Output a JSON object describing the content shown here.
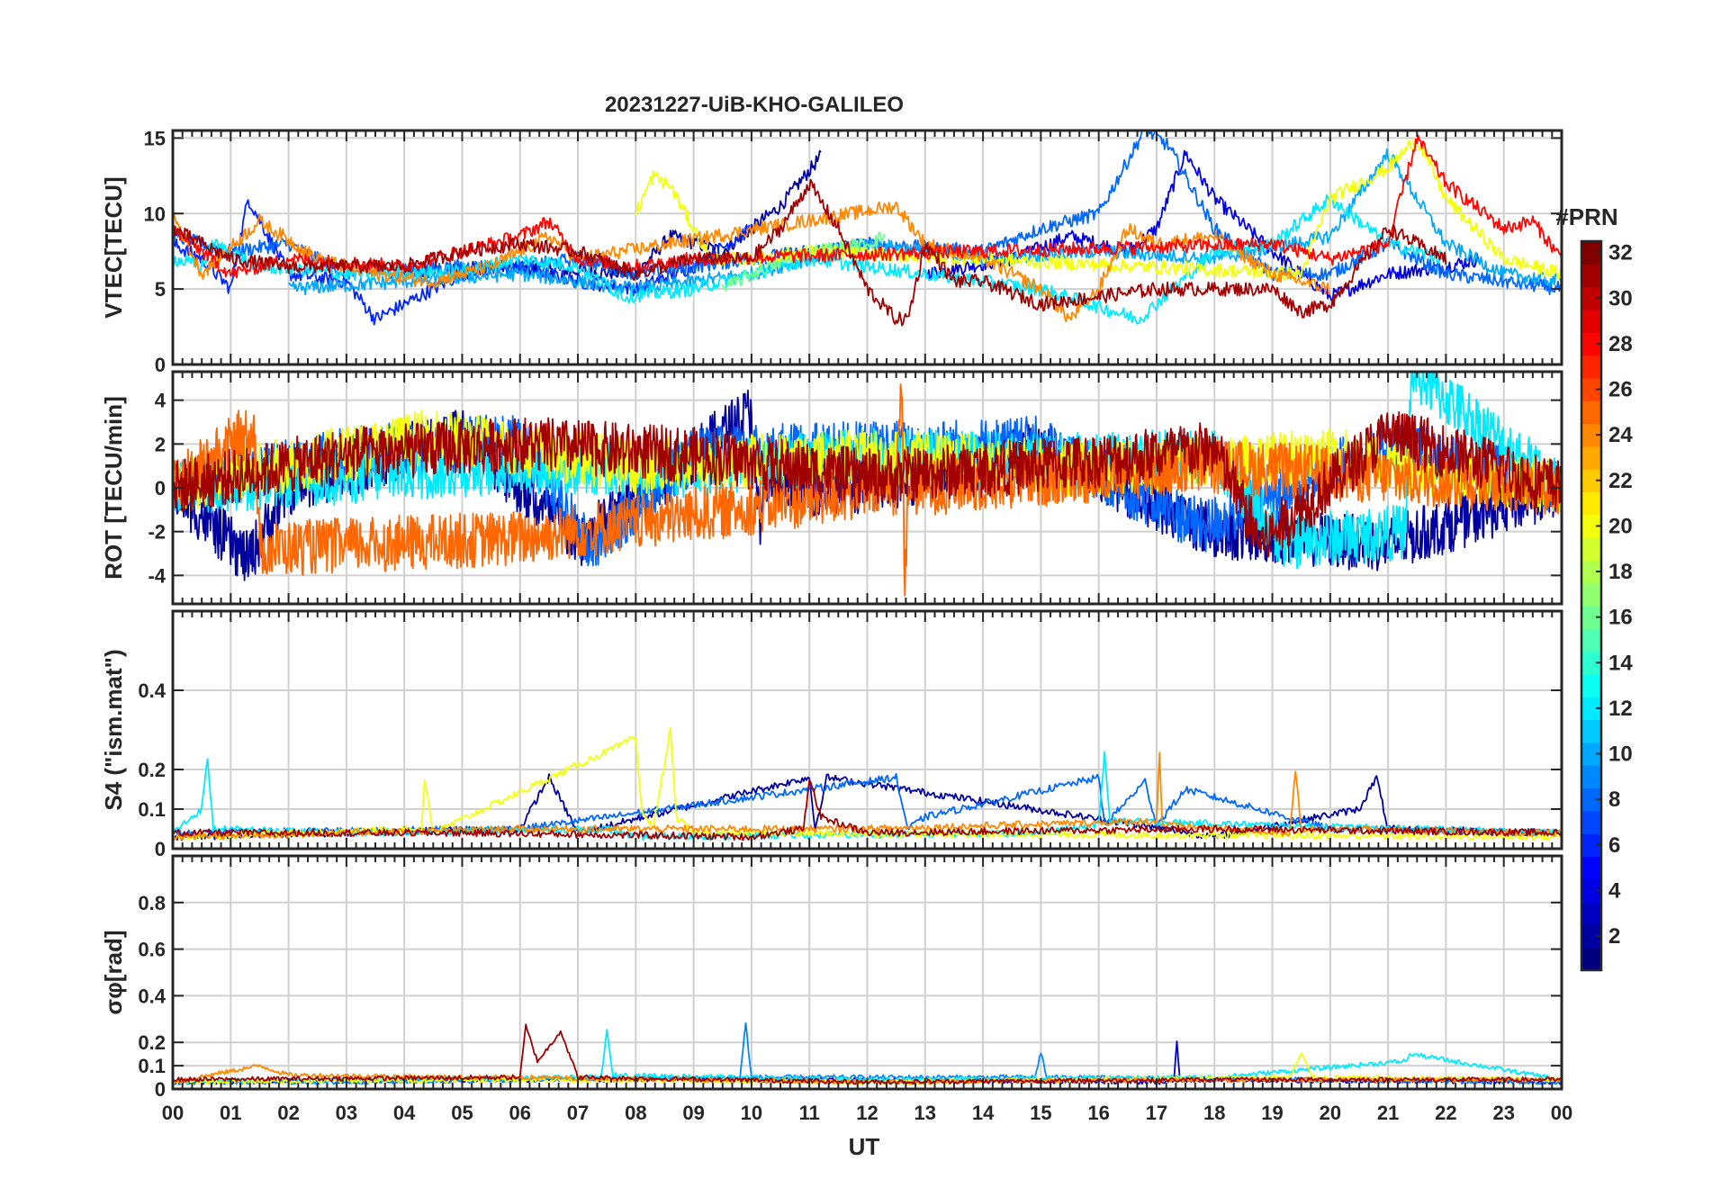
{
  "chart_data": {
    "type": "line",
    "title": "20231227-UiB-KHO-GALILEO",
    "xlabel": "UT",
    "x_tick_labels": [
      "00",
      "01",
      "02",
      "03",
      "04",
      "05",
      "06",
      "07",
      "08",
      "09",
      "10",
      "11",
      "12",
      "13",
      "14",
      "15",
      "16",
      "17",
      "18",
      "19",
      "20",
      "21",
      "22",
      "23",
      "00"
    ],
    "x_range_hours": [
      0,
      24
    ],
    "colorbar": {
      "title": "#PRN",
      "range": [
        1,
        32
      ],
      "tick_labels": [
        "2",
        "4",
        "6",
        "8",
        "10",
        "12",
        "14",
        "16",
        "18",
        "20",
        "22",
        "24",
        "26",
        "28",
        "30",
        "32"
      ],
      "colormap": "jet"
    },
    "panels": [
      {
        "name": "vtec",
        "ylabel": "VTEC[TECU]",
        "ylim": [
          0,
          15.5
        ],
        "y_ticks": [
          0,
          5,
          10,
          15
        ],
        "y_tick_labels": [
          "0",
          "5",
          "10",
          "15"
        ],
        "series": [
          {
            "prn": 2,
            "x": [
              4.0,
              5.5,
              7.0,
              8.0,
              8.6,
              9.5,
              10.5,
              11.2
            ],
            "y": [
              6,
              6.5,
              6.2,
              6,
              8.5,
              7.5,
              10.5,
              13.8
            ]
          },
          {
            "prn": 4,
            "x": [
              13.0,
              14.5,
              15.5,
              16.5,
              17.0,
              17.5,
              18.0,
              19.0,
              20.0,
              21.0,
              22.0,
              22.6
            ],
            "y": [
              6,
              7,
              8.5,
              7.5,
              9,
              14,
              11,
              7.5,
              4.5,
              6,
              6.5,
              7
            ]
          },
          {
            "prn": 6,
            "x": [
              0.0,
              0.5,
              1.0,
              1.3,
              2.0,
              3.0,
              3.5,
              5.0,
              6.0,
              7.0,
              8.0,
              9.0,
              10.0
            ],
            "y": [
              8,
              7,
              5,
              11,
              6,
              5.5,
              3,
              6,
              6.5,
              5.5,
              5,
              6.5,
              9
            ]
          },
          {
            "prn": 8,
            "x": [
              0.0,
              1.0,
              2.0,
              3.0,
              5.0,
              6.0,
              7.0,
              8.0,
              10.0,
              12.0,
              14.0,
              15.0,
              16.0,
              16.8,
              17.2,
              18.0,
              19.0,
              20.0,
              21.0,
              22.0,
              23.0,
              24.0
            ],
            "y": [
              8.5,
              7.5,
              8,
              6,
              6.5,
              6.5,
              7,
              6,
              7,
              8,
              7.5,
              9,
              10,
              15.6,
              14.5,
              9,
              6,
              6,
              8,
              6,
              5.5,
              5
            ]
          },
          {
            "prn": 10,
            "x": [
              2.0,
              4.0,
              6.0,
              8.0,
              10.0,
              12.0,
              14.0,
              16.0,
              18.0,
              20.0,
              21.0,
              21.5,
              22.0,
              23.0,
              24.0
            ],
            "y": [
              5,
              5.5,
              6,
              5,
              6,
              8,
              7,
              7.5,
              7,
              8.5,
              14,
              11,
              8,
              6,
              5.5
            ]
          },
          {
            "prn": 12,
            "x": [
              0.0,
              0.5,
              0.7,
              1.5,
              3.0,
              5.0,
              6.0,
              7.0,
              7.8,
              9.0,
              11.0,
              13.0,
              15.0,
              16.7,
              18.0,
              19.0,
              20.0,
              21.0,
              22.0
            ],
            "y": [
              7,
              6.5,
              8,
              6.5,
              6,
              6.2,
              7,
              6.5,
              4.5,
              5,
              7,
              6,
              5,
              3,
              7.5,
              8,
              11,
              8,
              7
            ]
          },
          {
            "prn": 16,
            "x": [
              9.5,
              10.0,
              11.0,
              12.0,
              12.3
            ],
            "y": [
              5,
              6,
              7.5,
              8,
              8.5
            ]
          },
          {
            "prn": 20,
            "x": [
              8.0,
              8.3,
              8.6,
              9.0,
              9.3,
              10.0,
              11.0,
              19.5,
              20.0,
              21.0,
              21.5,
              22.0,
              23.0,
              24.0
            ],
            "y": [
              10,
              12.5,
              11.8,
              9,
              7,
              7,
              7.5,
              6,
              11,
              13,
              15,
              11,
              7,
              6
            ]
          },
          {
            "prn": 24,
            "x": [
              0.0,
              0.5,
              1.5,
              2.5,
              3.5,
              4.5,
              5.5,
              6.5,
              7.0,
              12.5,
              13.0,
              14.0,
              15.0,
              15.5,
              16.0,
              16.5,
              17.0,
              18.0,
              19.0,
              20.0
            ],
            "y": [
              10,
              6,
              9.5,
              7,
              6,
              5.5,
              6.5,
              8.5,
              7,
              10.5,
              8,
              7,
              5,
              3,
              5,
              9,
              8,
              8.5,
              6,
              5
            ]
          },
          {
            "prn": 28,
            "x": [
              0.0,
              1.0,
              2.0,
              4.0,
              5.0,
              6.0,
              6.5,
              7.0,
              8.0,
              9.0,
              19.0,
              20.0,
              21.0,
              21.5,
              22.0,
              23.0,
              23.5,
              24.0
            ],
            "y": [
              9,
              6,
              7,
              6.5,
              7.5,
              8.5,
              9.5,
              7,
              6.5,
              7,
              8,
              7,
              8,
              15,
              12,
              9,
              9.5,
              7
            ]
          },
          {
            "prn": 31,
            "x": [
              0.0,
              1.0,
              2.0,
              4.0,
              5.0,
              6.0,
              7.0,
              8.0,
              9.0,
              10.0,
              10.5,
              11.0,
              11.5,
              12.0,
              12.5,
              12.7,
              13.0,
              13.5,
              14.0,
              15.0,
              16.0,
              17.0,
              18.0,
              19.0,
              19.5,
              20.0,
              21.0,
              22.0
            ],
            "y": [
              9,
              7,
              6.5,
              6.5,
              7.5,
              8,
              7.5,
              6,
              7,
              7,
              9,
              12,
              9,
              5,
              3,
              3,
              8,
              5.5,
              5.5,
              4,
              4.5,
              5,
              5,
              5,
              3.5,
              4,
              9,
              7
            ]
          }
        ]
      },
      {
        "name": "rot",
        "ylabel": "ROT [TECU/min]",
        "ylim": [
          -5.3,
          5.3
        ],
        "y_ticks": [
          -4,
          -2,
          0,
          2,
          4
        ],
        "y_tick_labels": [
          "-4",
          "-2",
          "0",
          "2",
          "4"
        ],
        "series": [
          {
            "prn": 2,
            "x": [
              0.0,
              1.3,
              2.0,
              5.0,
              7.0,
              10.0,
              10.15,
              10.2,
              12.0,
              15.0,
              18.0,
              21.0,
              24.0
            ],
            "y": [
              0,
              -3.3,
              0,
              2.5,
              -2.5,
              3.5,
              -2.5,
              0,
              0,
              1.8,
              -2,
              -2.6,
              0
            ]
          },
          {
            "prn": 8,
            "x": [
              0.0,
              3.0,
              6.0,
              7.2,
              9.0,
              12.0,
              15.0,
              17.8,
              21.0,
              24.0
            ],
            "y": [
              0,
              1.5,
              2.2,
              -2.8,
              1.5,
              1.8,
              2,
              -1.8,
              2,
              0
            ]
          },
          {
            "prn": 12,
            "x": [
              0.0,
              3.0,
              6.0,
              9.0,
              12.0,
              15.0,
              18.0,
              19.2,
              21.3,
              21.4,
              24.0
            ],
            "y": [
              0,
              0.5,
              1,
              0.8,
              1.5,
              1.2,
              1.5,
              -2.5,
              -2,
              5.3,
              0
            ]
          },
          {
            "prn": 20,
            "x": [
              0.0,
              4.5,
              8.0,
              12.0,
              16.0,
              20.0,
              24.0
            ],
            "y": [
              0,
              2.4,
              1,
              1.5,
              0.8,
              1.5,
              0
            ]
          },
          {
            "prn": 25,
            "x": [
              0.0,
              1.4,
              1.5,
              6.0,
              12.5,
              12.6,
              12.65,
              12.7,
              13.0,
              18.0,
              24.0
            ],
            "y": [
              0,
              2.8,
              -2.8,
              -2.3,
              0,
              5.2,
              -5.3,
              0,
              0,
              1,
              0
            ]
          },
          {
            "prn": 31,
            "x": [
              0.0,
              3.0,
              6.0,
              9.0,
              12.0,
              15.0,
              18.0,
              18.8,
              21.0,
              24.0
            ],
            "y": [
              0,
              1.5,
              2,
              1.5,
              0.5,
              1,
              1.8,
              -2.5,
              2.5,
              0
            ]
          }
        ]
      },
      {
        "name": "s4",
        "ylabel": "S4 (\"ism.mat\")",
        "ylim": [
          0,
          0.6
        ],
        "y_ticks": [
          0,
          0.1,
          0.2,
          0.4
        ],
        "y_tick_labels": [
          "0",
          "0.1",
          "0.2",
          "0.4"
        ],
        "series": [
          {
            "prn": 2,
            "x": [
              0.0,
              6.0,
              6.5,
              7.0,
              11.0,
              11.1,
              11.3,
              18.0,
              20.5,
              20.8,
              21.0,
              24.0
            ],
            "y": [
              0.03,
              0.05,
              0.18,
              0.04,
              0.18,
              0.05,
              0.18,
              0.03,
              0.1,
              0.18,
              0.05,
              0.04
            ]
          },
          {
            "prn": 8,
            "x": [
              0.0,
              6.0,
              12.5,
              12.7,
              13.0,
              16.0,
              16.1,
              16.8,
              17.0,
              17.5,
              20.0,
              24.0
            ],
            "y": [
              0.04,
              0.05,
              0.18,
              0.05,
              0.08,
              0.18,
              0.06,
              0.17,
              0.06,
              0.15,
              0.05,
              0.04
            ]
          },
          {
            "prn": 12,
            "x": [
              0.0,
              0.5,
              0.6,
              0.7,
              3.0,
              7.5,
              8.0,
              15.0,
              16.0,
              16.1,
              16.2,
              24.0
            ],
            "y": [
              0.04,
              0.1,
              0.23,
              0.05,
              0.04,
              0.05,
              0.03,
              0.04,
              0.06,
              0.24,
              0.07,
              0.04
            ]
          },
          {
            "prn": 20,
            "x": [
              0.0,
              4.3,
              4.35,
              4.5,
              8.0,
              8.1,
              8.3,
              8.6,
              8.7,
              9.0,
              24.0
            ],
            "y": [
              0.03,
              0.05,
              0.18,
              0.04,
              0.28,
              0.1,
              0.05,
              0.3,
              0.08,
              0.04,
              0.03
            ]
          },
          {
            "prn": 24,
            "x": [
              0.0,
              6.0,
              12.0,
              17.0,
              17.05,
              17.1,
              19.3,
              19.4,
              19.5,
              24.0
            ],
            "y": [
              0.03,
              0.05,
              0.05,
              0.07,
              0.24,
              0.06,
              0.04,
              0.2,
              0.05,
              0.04
            ]
          },
          {
            "prn": 31,
            "x": [
              0.0,
              5.0,
              10.0,
              10.9,
              11.0,
              11.2,
              12.0,
              18.0,
              24.0
            ],
            "y": [
              0.04,
              0.04,
              0.03,
              0.05,
              0.18,
              0.08,
              0.04,
              0.05,
              0.04
            ]
          }
        ]
      },
      {
        "name": "sigma_phi",
        "ylabel": "σφ[rad]",
        "ylim": [
          0,
          1.0
        ],
        "y_ticks": [
          0,
          0.1,
          0.2,
          0.4,
          0.6,
          0.8
        ],
        "y_tick_labels": [
          "0",
          "0.1",
          "0.2",
          "0.4",
          "0.6",
          "0.8"
        ],
        "series": [
          {
            "prn": 3,
            "x": [
              0.0,
              6.0,
              12.0,
              17.3,
              17.35,
              17.4,
              24.0
            ],
            "y": [
              0.03,
              0.04,
              0.04,
              0.03,
              0.21,
              0.04,
              0.03
            ]
          },
          {
            "prn": 9,
            "x": [
              0.0,
              3.0,
              9.8,
              9.9,
              10.0,
              14.9,
              15.0,
              15.1,
              24.0
            ],
            "y": [
              0.03,
              0.03,
              0.05,
              0.28,
              0.05,
              0.05,
              0.16,
              0.05,
              0.03
            ]
          },
          {
            "prn": 12,
            "x": [
              0.0,
              3.0,
              7.4,
              7.5,
              7.6,
              12.0,
              18.0,
              21.3,
              21.4,
              24.0
            ],
            "y": [
              0.03,
              0.04,
              0.05,
              0.25,
              0.06,
              0.04,
              0.05,
              0.12,
              0.15,
              0.04
            ]
          },
          {
            "prn": 20,
            "x": [
              0.0,
              6.0,
              12.0,
              19.3,
              19.5,
              19.7,
              24.0
            ],
            "y": [
              0.03,
              0.04,
              0.03,
              0.05,
              0.15,
              0.05,
              0.04
            ]
          },
          {
            "prn": 24,
            "x": [
              0.0,
              1.5,
              2.0,
              5.0,
              6.0,
              12.0,
              18.0,
              24.0
            ],
            "y": [
              0.03,
              0.1,
              0.06,
              0.05,
              0.05,
              0.03,
              0.04,
              0.04
            ]
          },
          {
            "prn": 31,
            "x": [
              0.0,
              6.0,
              6.1,
              6.3,
              6.5,
              6.7,
              7.0,
              12.0,
              18.0,
              24.0
            ],
            "y": [
              0.04,
              0.05,
              0.27,
              0.12,
              0.18,
              0.25,
              0.05,
              0.03,
              0.04,
              0.04
            ]
          }
        ]
      }
    ]
  }
}
